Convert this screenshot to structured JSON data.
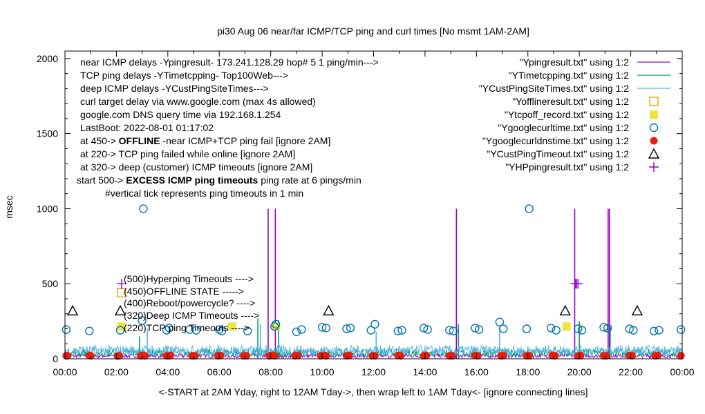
{
  "chart_data": {
    "type": "line",
    "title": "pi30 Aug 06  near/far ICMP/TCP ping and curl times [No msmt 1AM-2AM]",
    "xlabel": "<-START at 2AM Yday, right to 12AM Tday->, then wrap left to 1AM Tday<- [ignore connecting lines]",
    "ylabel": "msec",
    "xlim": [
      0,
      24
    ],
    "ylim": [
      0,
      2050
    ],
    "x_ticks": [
      "00:00",
      "02:00",
      "04:00",
      "06:00",
      "08:00",
      "10:00",
      "12:00",
      "14:00",
      "16:00",
      "18:00",
      "20:00",
      "22:00",
      "00:00"
    ],
    "y_ticks": [
      "0",
      "500",
      "1000",
      "1500",
      "2000"
    ],
    "y_tick_values": [
      0,
      500,
      1000,
      1500,
      2000
    ],
    "grid": false,
    "legend_position": "top-right",
    "info_lines": [
      {
        "prefix": "near ICMP delays -Ypingresult- 173.241.128.29 hop# 5 1 ping/min--->",
        "bold": "",
        "suffix": ""
      },
      {
        "prefix": "TCP ping delays -YTimetcpping- Top100Web--->",
        "bold": "",
        "suffix": ""
      },
      {
        "prefix": "deep ICMP delays -YCustPingSiteTimes--->",
        "bold": "",
        "suffix": ""
      },
      {
        "prefix": "curl target delay via www.google.com (max 4s allowed)",
        "bold": "",
        "suffix": ""
      },
      {
        "prefix": "google.com DNS query time via 192.168.1.254",
        "bold": "",
        "suffix": ""
      },
      {
        "prefix": "LastBoot: 2022-08-01 01:17:02",
        "bold": "",
        "suffix": ""
      },
      {
        "prefix": "at 450-> ",
        "bold": "OFFLINE",
        "suffix": " -near ICMP+TCP ping fail [ignore 2AM]"
      },
      {
        "prefix": "at 220-> TCP ping failed while online [ignore 2AM]",
        "bold": "",
        "suffix": ""
      },
      {
        "prefix": "at 320-> deep (customer) ICMP timeouts [ignore 2AM]",
        "bold": "",
        "suffix": ""
      },
      {
        "prefix": "start 500-> ",
        "bold": "EXCESS ICMP ping timeouts",
        "suffix": "  ping rate at 6 pings/min"
      },
      {
        "prefix": "#vertical tick represents ping timeouts in 1 min",
        "bold": "",
        "suffix": ""
      }
    ],
    "marker_labels": [
      {
        "text": "(500)Hyperping Timeouts ---->",
        "y": 500
      },
      {
        "text": "(450)OFFLINE STATE ----->",
        "y": 450
      },
      {
        "text": "(400)Reboot/powercycle? ---->",
        "y": 400
      },
      {
        "text": "(320)Deep ICMP Timeouts ---->",
        "y": 320
      },
      {
        "text": "(220)TCP ping Timeouts ---->",
        "y": 220
      }
    ],
    "series": [
      {
        "name": "\"Ypingresult.txt\" using 1:2",
        "style": "line",
        "color": "#9400d3",
        "baseline": 22,
        "spikes": [
          {
            "x": 7.9,
            "y": 1000
          },
          {
            "x": 8.18,
            "y": 1000
          },
          {
            "x": 15.22,
            "y": 1000
          },
          {
            "x": 19.82,
            "y": 1000
          },
          {
            "x": 21.12,
            "y": 1000
          },
          {
            "x": 21.17,
            "y": 1000
          }
        ]
      },
      {
        "name": "\"YTimetcpping.txt\" using 1:2",
        "style": "line",
        "color": "#009e73",
        "baseline": 45,
        "spikes": [
          {
            "x": 7.5,
            "y": 270
          },
          {
            "x": 8.3,
            "y": 260
          },
          {
            "x": 15.3,
            "y": 230
          },
          {
            "x": 20.0,
            "y": 250
          },
          {
            "x": 21.2,
            "y": 210
          },
          {
            "x": 2.9,
            "y": 150
          }
        ]
      },
      {
        "name": "\"YCustPingSiteTimes.txt\" using 1:2",
        "style": "line",
        "color": "#56b4e9",
        "baseline": 60,
        "spikes": [
          {
            "x": 3.2,
            "y": 200
          },
          {
            "x": 7.6,
            "y": 230
          },
          {
            "x": 12.1,
            "y": 180
          },
          {
            "x": 16.9,
            "y": 210
          }
        ]
      },
      {
        "name": "\"Yofflineresult.txt\" using 1:2",
        "style": "open-square",
        "color": "#e69f00",
        "points": [
          [
            2.2,
            440
          ]
        ]
      },
      {
        "name": "\"Ytcpoff_record.txt\" using 1:2",
        "style": "filled-square",
        "color": "#f0e442",
        "points": [
          [
            2.2,
            215
          ],
          [
            6.5,
            215
          ],
          [
            8.2,
            215
          ],
          [
            19.5,
            215
          ]
        ]
      },
      {
        "name": "\"Ygooglecurltime.txt\" using 1:2",
        "style": "open-circle",
        "color": "#0072b2",
        "points": [
          [
            0.05,
            195
          ],
          [
            0.95,
            185
          ],
          [
            2.15,
            190
          ],
          [
            3.05,
            1000
          ],
          [
            3.0,
            255
          ],
          [
            3.95,
            190
          ],
          [
            4.05,
            205
          ],
          [
            4.85,
            195
          ],
          [
            5.1,
            190
          ],
          [
            6.0,
            195
          ],
          [
            6.1,
            185
          ],
          [
            7.1,
            185
          ],
          [
            8.15,
            215
          ],
          [
            8.2,
            230
          ],
          [
            9.0,
            180
          ],
          [
            9.2,
            195
          ],
          [
            10.0,
            210
          ],
          [
            10.15,
            205
          ],
          [
            10.95,
            200
          ],
          [
            11.1,
            205
          ],
          [
            11.9,
            190
          ],
          [
            12.05,
            230
          ],
          [
            12.95,
            185
          ],
          [
            13.1,
            190
          ],
          [
            13.95,
            205
          ],
          [
            14.1,
            195
          ],
          [
            14.95,
            190
          ],
          [
            15.1,
            185
          ],
          [
            15.95,
            205
          ],
          [
            16.1,
            195
          ],
          [
            16.9,
            245
          ],
          [
            17.05,
            200
          ],
          [
            17.95,
            200
          ],
          [
            18.05,
            1000
          ],
          [
            18.9,
            205
          ],
          [
            19.1,
            190
          ],
          [
            19.95,
            200
          ],
          [
            20.1,
            190
          ],
          [
            20.95,
            210
          ],
          [
            21.1,
            205
          ],
          [
            21.95,
            200
          ],
          [
            22.1,
            190
          ],
          [
            22.9,
            185
          ],
          [
            23.1,
            190
          ],
          [
            23.95,
            195
          ]
        ]
      },
      {
        "name": "\"Ygooglecurldnstime.txt\" using 1:2",
        "style": "filled-circle",
        "color": "#e51e10",
        "points": [
          [
            0.05,
            20
          ],
          [
            0.1,
            20
          ],
          [
            0.95,
            22
          ],
          [
            1.0,
            20
          ],
          [
            2.05,
            18
          ],
          [
            2.1,
            20
          ],
          [
            2.95,
            20
          ],
          [
            3.05,
            22
          ],
          [
            3.1,
            20
          ],
          [
            3.95,
            20
          ],
          [
            4.05,
            20
          ],
          [
            4.1,
            22
          ],
          [
            4.95,
            20
          ],
          [
            5.05,
            20
          ],
          [
            5.95,
            20
          ],
          [
            6.05,
            22
          ],
          [
            6.95,
            20
          ],
          [
            7.05,
            20
          ],
          [
            7.95,
            20
          ],
          [
            8.05,
            22
          ],
          [
            8.15,
            20
          ],
          [
            8.95,
            20
          ],
          [
            9.05,
            22
          ],
          [
            9.95,
            20
          ],
          [
            10.1,
            22
          ],
          [
            10.15,
            20
          ],
          [
            10.95,
            20
          ],
          [
            11.05,
            22
          ],
          [
            11.95,
            20
          ],
          [
            12.05,
            20
          ],
          [
            12.95,
            22
          ],
          [
            13.05,
            20
          ],
          [
            13.95,
            20
          ],
          [
            14.05,
            22
          ],
          [
            14.95,
            20
          ],
          [
            15.05,
            20
          ],
          [
            15.95,
            22
          ],
          [
            16.05,
            20
          ],
          [
            16.95,
            20
          ],
          [
            17.05,
            22
          ],
          [
            17.95,
            20
          ],
          [
            18.05,
            20
          ],
          [
            18.95,
            22
          ],
          [
            19.05,
            20
          ],
          [
            19.95,
            20
          ],
          [
            20.05,
            22
          ],
          [
            20.95,
            20
          ],
          [
            21.05,
            20
          ],
          [
            21.95,
            22
          ],
          [
            22.05,
            20
          ],
          [
            22.95,
            20
          ],
          [
            23.05,
            22
          ],
          [
            23.95,
            20
          ]
        ]
      },
      {
        "name": "\"YCustPingTimeout.txt\" using 1:2",
        "style": "open-triangle",
        "color": "#000000",
        "points": [
          [
            0.3,
            320
          ],
          [
            2.15,
            320
          ],
          [
            10.25,
            320
          ],
          [
            19.45,
            320
          ],
          [
            22.25,
            320
          ]
        ]
      },
      {
        "name": "\"YHPpingresult.txt\" using 1:2",
        "style": "plus",
        "color": "#9400d3",
        "points": [
          [
            2.2,
            500
          ],
          [
            19.85,
            500
          ],
          [
            19.9,
            500
          ],
          [
            19.95,
            500
          ]
        ]
      }
    ]
  }
}
